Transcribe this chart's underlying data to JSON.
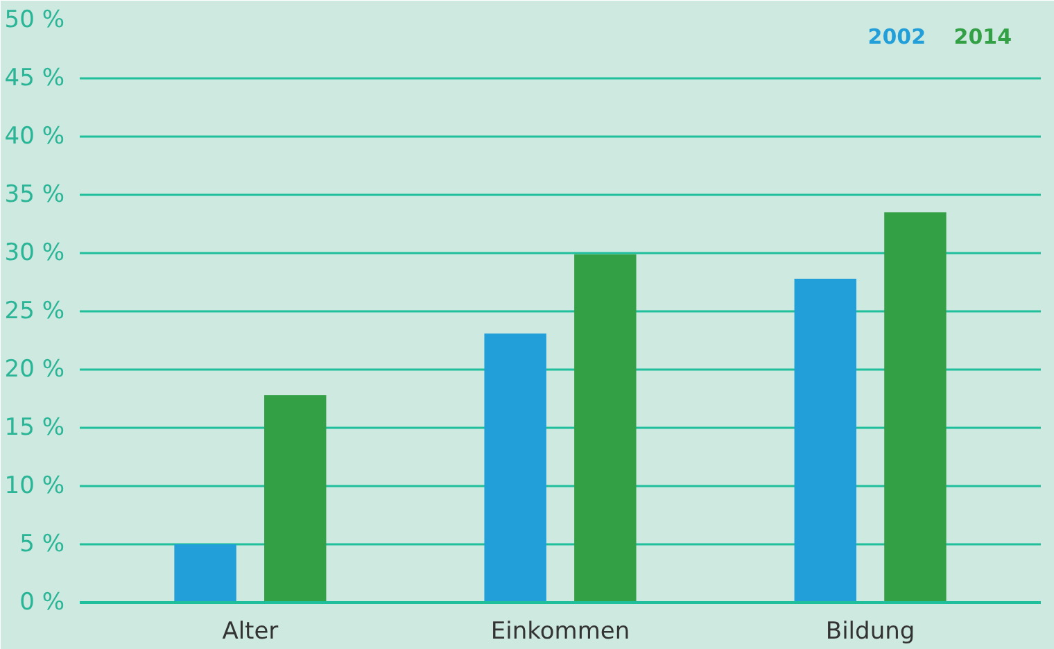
{
  "chart_data": {
    "type": "bar",
    "categories": [
      "Alter",
      "Einkommen",
      "Bildung"
    ],
    "series": [
      {
        "name": "2002",
        "color": "#229fd9",
        "values": [
          5,
          23.1,
          27.8
        ]
      },
      {
        "name": "2014",
        "color": "#34a045",
        "values": [
          17.8,
          29.9,
          33.5
        ]
      }
    ],
    "ylim": [
      0,
      50
    ],
    "yticks": [
      {
        "value": 0,
        "label": "0 %"
      },
      {
        "value": 5,
        "label": "5 %"
      },
      {
        "value": 10,
        "label": "10 %"
      },
      {
        "value": 15,
        "label": "15 %"
      },
      {
        "value": 20,
        "label": "20 %"
      },
      {
        "value": 25,
        "label": "25 %"
      },
      {
        "value": 30,
        "label": "30 %"
      },
      {
        "value": 35,
        "label": "35 %"
      },
      {
        "value": 40,
        "label": "40 %"
      },
      {
        "value": 45,
        "label": "45 %"
      },
      {
        "value": 50,
        "label": "50 %"
      }
    ],
    "grid": "y",
    "legend": "top right"
  }
}
